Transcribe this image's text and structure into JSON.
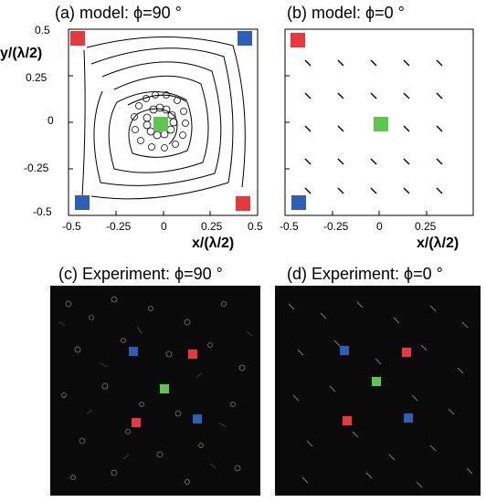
{
  "figure": {
    "panels": [
      {
        "id": "a",
        "title": "(a) model: ϕ=90 °"
      },
      {
        "id": "b",
        "title": "(b) model: ϕ=0 °"
      },
      {
        "id": "c",
        "title": "(c) Experiment: ϕ=90 °"
      },
      {
        "id": "d",
        "title": "(d) Experiment: ϕ=0 °"
      }
    ],
    "axes": {
      "xlabel": "x/(λ/2)",
      "ylabel": "y/(λ/2)",
      "ticks_a_x": [
        "-0.5",
        "-0.25",
        "0",
        "0.25",
        "0.5"
      ],
      "ticks_a_y": [
        "0.5",
        "0.25",
        "0",
        "-0.25",
        "-0.5"
      ],
      "ticks_b_x": [
        "-0.5",
        "-0.25",
        "0",
        "0.25"
      ]
    },
    "colors": {
      "red_marker": "#e8383d",
      "blue_marker": "#2d5fb5",
      "green_marker": "#5cc84a"
    }
  }
}
